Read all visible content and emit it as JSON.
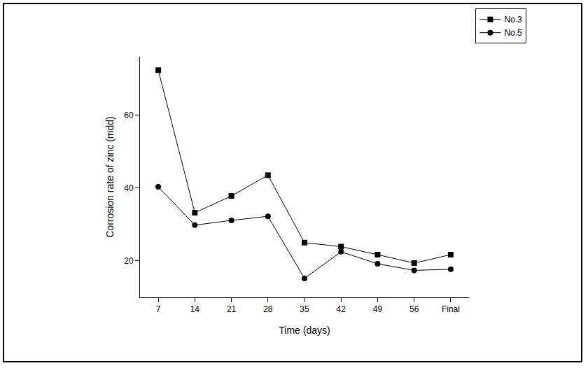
{
  "chart_data": {
    "type": "line",
    "x_label": "Time (days)",
    "y_label": "Corrosion rate of zinc (mdd)",
    "categories": [
      "7",
      "14",
      "21",
      "28",
      "35",
      "42",
      "49",
      "56",
      "Final"
    ],
    "series": [
      {
        "name": "No.3",
        "color": "#000000",
        "marker": "square",
        "values": [
          72.3,
          33.2,
          37.8,
          43.5,
          25.0,
          23.9,
          21.7,
          19.4,
          21.7
        ]
      },
      {
        "name": "No.5",
        "color": "#000000",
        "marker": "circle",
        "values": [
          40.3,
          29.8,
          31.1,
          32.2,
          15.2,
          22.5,
          19.2,
          17.4,
          17.7
        ]
      }
    ],
    "ylim": [
      10,
      76
    ],
    "yticks": [
      20,
      40,
      60
    ],
    "grid": false,
    "legend": "upper right"
  }
}
